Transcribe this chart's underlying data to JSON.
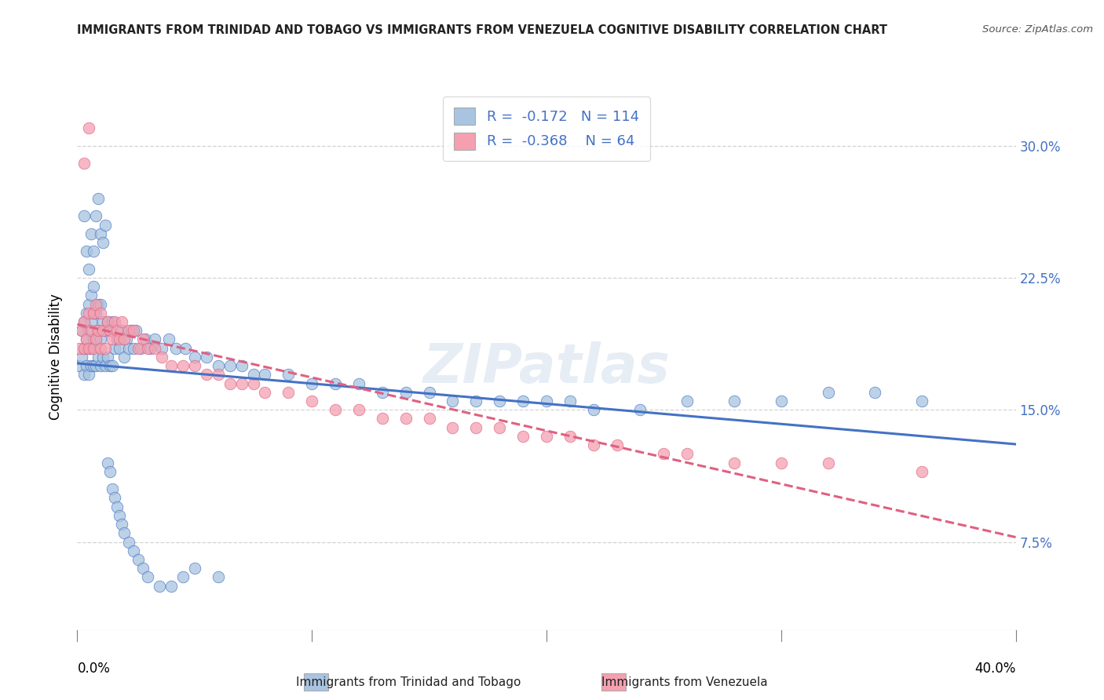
{
  "title": "IMMIGRANTS FROM TRINIDAD AND TOBAGO VS IMMIGRANTS FROM VENEZUELA COGNITIVE DISABILITY CORRELATION CHART",
  "source": "Source: ZipAtlas.com",
  "ylabel": "Cognitive Disability",
  "ytick_labels": [
    "7.5%",
    "15.0%",
    "22.5%",
    "30.0%"
  ],
  "ytick_values": [
    0.075,
    0.15,
    0.225,
    0.3
  ],
  "xlim": [
    0.0,
    0.4
  ],
  "ylim": [
    0.025,
    0.335
  ],
  "legend_label1": "Immigrants from Trinidad and Tobago",
  "legend_label2": "Immigrants from Venezuela",
  "R1": -0.172,
  "N1": 114,
  "R2": -0.368,
  "N2": 64,
  "color1": "#a8c4e0",
  "color2": "#f4a0b0",
  "line1_color": "#4472c4",
  "line2_color": "#e06080",
  "watermark": "ZIPatlas",
  "blue_scatter_x": [
    0.001,
    0.002,
    0.002,
    0.003,
    0.003,
    0.003,
    0.004,
    0.004,
    0.004,
    0.005,
    0.005,
    0.005,
    0.005,
    0.006,
    0.006,
    0.006,
    0.006,
    0.007,
    0.007,
    0.007,
    0.007,
    0.008,
    0.008,
    0.008,
    0.009,
    0.009,
    0.009,
    0.01,
    0.01,
    0.01,
    0.011,
    0.011,
    0.012,
    0.012,
    0.013,
    0.013,
    0.014,
    0.014,
    0.015,
    0.015,
    0.016,
    0.017,
    0.018,
    0.019,
    0.02,
    0.021,
    0.022,
    0.023,
    0.024,
    0.025,
    0.027,
    0.029,
    0.031,
    0.033,
    0.036,
    0.039,
    0.042,
    0.046,
    0.05,
    0.055,
    0.06,
    0.065,
    0.07,
    0.075,
    0.08,
    0.09,
    0.1,
    0.11,
    0.12,
    0.13,
    0.14,
    0.15,
    0.16,
    0.17,
    0.18,
    0.19,
    0.2,
    0.21,
    0.22,
    0.24,
    0.26,
    0.28,
    0.3,
    0.32,
    0.34,
    0.36,
    0.003,
    0.004,
    0.005,
    0.006,
    0.007,
    0.008,
    0.009,
    0.01,
    0.011,
    0.012,
    0.013,
    0.014,
    0.015,
    0.016,
    0.017,
    0.018,
    0.019,
    0.02,
    0.022,
    0.024,
    0.026,
    0.028,
    0.03,
    0.035,
    0.04,
    0.045,
    0.05,
    0.06
  ],
  "blue_scatter_y": [
    0.175,
    0.18,
    0.195,
    0.17,
    0.185,
    0.2,
    0.175,
    0.19,
    0.205,
    0.17,
    0.185,
    0.195,
    0.21,
    0.175,
    0.185,
    0.2,
    0.215,
    0.175,
    0.19,
    0.205,
    0.22,
    0.175,
    0.19,
    0.205,
    0.18,
    0.195,
    0.21,
    0.175,
    0.19,
    0.21,
    0.18,
    0.2,
    0.175,
    0.195,
    0.18,
    0.2,
    0.175,
    0.195,
    0.175,
    0.2,
    0.185,
    0.19,
    0.185,
    0.195,
    0.18,
    0.19,
    0.185,
    0.195,
    0.185,
    0.195,
    0.185,
    0.19,
    0.185,
    0.19,
    0.185,
    0.19,
    0.185,
    0.185,
    0.18,
    0.18,
    0.175,
    0.175,
    0.175,
    0.17,
    0.17,
    0.17,
    0.165,
    0.165,
    0.165,
    0.16,
    0.16,
    0.16,
    0.155,
    0.155,
    0.155,
    0.155,
    0.155,
    0.155,
    0.15,
    0.15,
    0.155,
    0.155,
    0.155,
    0.16,
    0.16,
    0.155,
    0.26,
    0.24,
    0.23,
    0.25,
    0.24,
    0.26,
    0.27,
    0.25,
    0.245,
    0.255,
    0.12,
    0.115,
    0.105,
    0.1,
    0.095,
    0.09,
    0.085,
    0.08,
    0.075,
    0.07,
    0.065,
    0.06,
    0.055,
    0.05,
    0.05,
    0.055,
    0.06,
    0.055
  ],
  "pink_scatter_x": [
    0.001,
    0.002,
    0.003,
    0.003,
    0.004,
    0.005,
    0.005,
    0.006,
    0.007,
    0.007,
    0.008,
    0.008,
    0.009,
    0.01,
    0.01,
    0.011,
    0.012,
    0.013,
    0.014,
    0.015,
    0.016,
    0.017,
    0.018,
    0.019,
    0.02,
    0.022,
    0.024,
    0.026,
    0.028,
    0.03,
    0.033,
    0.036,
    0.04,
    0.045,
    0.05,
    0.055,
    0.06,
    0.065,
    0.07,
    0.075,
    0.08,
    0.09,
    0.1,
    0.11,
    0.12,
    0.13,
    0.14,
    0.15,
    0.16,
    0.17,
    0.18,
    0.19,
    0.2,
    0.21,
    0.22,
    0.23,
    0.25,
    0.26,
    0.28,
    0.3,
    0.32,
    0.36,
    0.003,
    0.005
  ],
  "pink_scatter_y": [
    0.185,
    0.195,
    0.185,
    0.2,
    0.19,
    0.185,
    0.205,
    0.195,
    0.185,
    0.205,
    0.19,
    0.21,
    0.195,
    0.185,
    0.205,
    0.195,
    0.185,
    0.2,
    0.195,
    0.19,
    0.2,
    0.195,
    0.19,
    0.2,
    0.19,
    0.195,
    0.195,
    0.185,
    0.19,
    0.185,
    0.185,
    0.18,
    0.175,
    0.175,
    0.175,
    0.17,
    0.17,
    0.165,
    0.165,
    0.165,
    0.16,
    0.16,
    0.155,
    0.15,
    0.15,
    0.145,
    0.145,
    0.145,
    0.14,
    0.14,
    0.14,
    0.135,
    0.135,
    0.135,
    0.13,
    0.13,
    0.125,
    0.125,
    0.12,
    0.12,
    0.12,
    0.115,
    0.29,
    0.31
  ]
}
